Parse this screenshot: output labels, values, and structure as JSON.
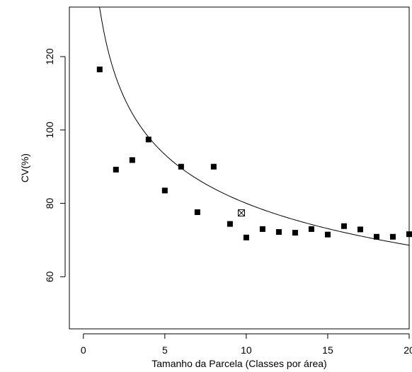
{
  "chart_data": {
    "type": "scatter",
    "title": "",
    "xlabel": "Tamanho da Parcela (Classes por área)",
    "ylabel": "CV(%)",
    "xlim": [
      -0.86,
      20.0
    ],
    "ylim": [
      45.8,
      133.5
    ],
    "xticks": [
      0,
      5,
      10,
      15,
      20
    ],
    "yticks": [
      60,
      80,
      100,
      120
    ],
    "grid": false,
    "legend": "none",
    "colors": {
      "points": "#000000",
      "curve": "#000000",
      "frame": "#000000",
      "background": "#ffffff"
    },
    "points": [
      {
        "x": 1,
        "y": 116.5
      },
      {
        "x": 2,
        "y": 89.2
      },
      {
        "x": 3,
        "y": 91.8
      },
      {
        "x": 4,
        "y": 97.4
      },
      {
        "x": 5,
        "y": 83.5
      },
      {
        "x": 6,
        "y": 90.0
      },
      {
        "x": 7,
        "y": 77.6
      },
      {
        "x": 8,
        "y": 90.0
      },
      {
        "x": 9,
        "y": 74.4
      },
      {
        "x": 10,
        "y": 70.7
      },
      {
        "x": 11,
        "y": 73.0
      },
      {
        "x": 12,
        "y": 72.2
      },
      {
        "x": 13,
        "y": 72.0
      },
      {
        "x": 14,
        "y": 73.0
      },
      {
        "x": 15,
        "y": 71.5
      },
      {
        "x": 16,
        "y": 73.8
      },
      {
        "x": 17,
        "y": 72.9
      },
      {
        "x": 18,
        "y": 70.9
      },
      {
        "x": 19,
        "y": 70.9
      },
      {
        "x": 20,
        "y": 71.6
      }
    ],
    "marked_point": {
      "x": 9.7,
      "y": 77.4
    },
    "curve": {
      "type": "power",
      "a": 133.4,
      "b": -0.222,
      "x_start": 0.25,
      "x_end": 20,
      "samples": 160
    }
  }
}
